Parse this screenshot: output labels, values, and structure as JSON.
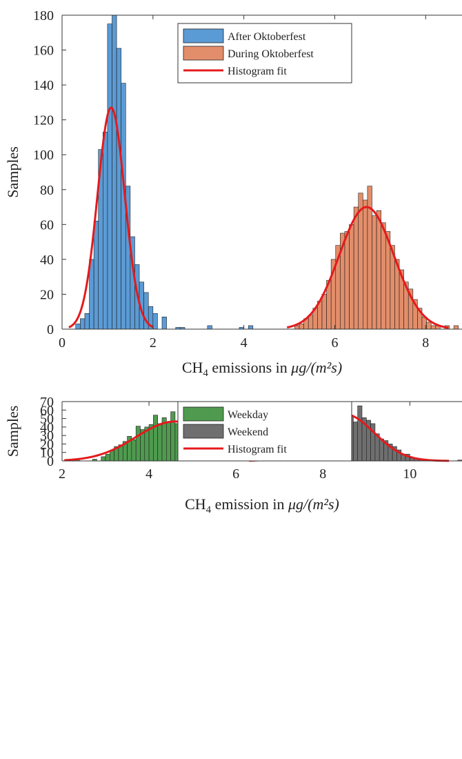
{
  "chart_data": [
    {
      "type": "bar",
      "subtype": "histogram-with-fit",
      "xlabel": {
        "prefix": "CH",
        "sub": "4",
        "rest": " emissions in ",
        "unit": "μg/(m²s)"
      },
      "ylabel": "Samples",
      "xlim": [
        0,
        8.8
      ],
      "ylim": [
        0,
        180
      ],
      "xticks": [
        "0",
        "2",
        "4",
        "6",
        "8"
      ],
      "xtick_values": [
        0,
        2,
        4,
        6,
        8
      ],
      "yticks": [
        "0",
        "20",
        "40",
        "60",
        "80",
        "100",
        "120",
        "140",
        "160",
        "180"
      ],
      "ytick_values": [
        0,
        20,
        40,
        60,
        80,
        100,
        120,
        140,
        160,
        180
      ],
      "grid": false,
      "legend_position": "top-center",
      "series": [
        {
          "name": "After Oktoberfest",
          "kind": "histogram",
          "color": "#5b9bd5",
          "bins_x": [
            0.35,
            0.45,
            0.55,
            0.65,
            0.75,
            0.85,
            0.95,
            1.05,
            1.15,
            1.25,
            1.35,
            1.45,
            1.55,
            1.65,
            1.75,
            1.85,
            1.95,
            2.05,
            2.25,
            2.55,
            2.65,
            3.25,
            3.95,
            4.15
          ],
          "values": [
            3,
            6,
            9,
            40,
            62,
            103,
            113,
            175,
            180,
            161,
            141,
            82,
            53,
            37,
            27,
            21,
            13,
            9,
            7,
            1,
            1,
            2,
            1,
            2
          ]
        },
        {
          "name": "During Oktoberfest",
          "kind": "histogram",
          "color": "#e38e6a",
          "bins_x": [
            5.17,
            5.27,
            5.37,
            5.47,
            5.57,
            5.67,
            5.77,
            5.87,
            5.97,
            6.07,
            6.17,
            6.27,
            6.37,
            6.47,
            6.57,
            6.67,
            6.77,
            6.87,
            6.97,
            7.07,
            7.17,
            7.27,
            7.37,
            7.47,
            7.57,
            7.67,
            7.77,
            7.87,
            7.97,
            8.07,
            8.17,
            8.27,
            8.47,
            8.67
          ],
          "values": [
            2,
            3,
            6,
            8,
            12,
            16,
            20,
            28,
            40,
            48,
            55,
            56,
            60,
            70,
            78,
            74,
            82,
            65,
            68,
            61,
            56,
            48,
            40,
            34,
            27,
            23,
            17,
            12,
            7,
            4,
            2,
            2,
            2,
            2
          ]
        },
        {
          "name": "Histogram fit",
          "kind": "fit",
          "color": "#e41a1c",
          "fits": [
            {
              "mean": 1.08,
              "sd": 0.3,
              "peak": 127,
              "xmin": 0.15,
              "xmax": 2.0
            },
            {
              "mean": 6.7,
              "sd": 0.6,
              "peak": 70,
              "xmin": 4.95,
              "xmax": 8.5
            }
          ]
        }
      ]
    },
    {
      "type": "bar",
      "subtype": "histogram-with-fit",
      "xlabel": {
        "prefix": "CH",
        "sub": "4",
        "rest": " emission in ",
        "unit": "μg/(m²s)"
      },
      "ylabel": "Samples",
      "xlim": [
        2,
        11.2
      ],
      "ylim": [
        0,
        70
      ],
      "xticks": [
        "2",
        "4",
        "6",
        "8",
        "10"
      ],
      "xtick_values": [
        2,
        4,
        6,
        8,
        10
      ],
      "yticks": [
        "0",
        "10",
        "20",
        "30",
        "40",
        "50",
        "60",
        "70"
      ],
      "ytick_values": [
        0,
        10,
        20,
        30,
        40,
        50,
        60,
        70
      ],
      "grid": false,
      "legend_position": "top-center",
      "series": [
        {
          "name": "Weekday",
          "kind": "histogram",
          "color": "#4f9a4f",
          "bins_x": [
            2.35,
            2.75,
            2.95,
            3.05,
            3.15,
            3.25,
            3.35,
            3.45,
            3.55,
            3.65,
            3.75,
            3.85,
            3.95,
            4.05,
            4.15,
            4.25,
            4.35,
            4.45,
            4.55,
            4.65,
            4.75,
            4.85,
            4.95,
            5.05,
            5.15,
            5.25,
            5.35,
            5.45,
            5.55,
            5.65,
            5.75,
            5.85,
            5.95,
            6.05,
            6.15,
            6.25,
            6.35,
            6.45,
            6.55,
            6.65,
            6.75,
            6.85,
            6.95,
            7.05,
            7.15
          ],
          "values": [
            2,
            2,
            5,
            8,
            12,
            17,
            19,
            23,
            29,
            25,
            41,
            37,
            40,
            43,
            54,
            44,
            51,
            46,
            58,
            44,
            54,
            62,
            54,
            45,
            47,
            44,
            36,
            28,
            26,
            24,
            25,
            21,
            19,
            14,
            11,
            9,
            5,
            4,
            4,
            3,
            2,
            2,
            2,
            1,
            1
          ]
        },
        {
          "name": "Weekend",
          "kind": "histogram",
          "color": "#6f6f6f",
          "bins_x": [
            6.75,
            6.85,
            6.95,
            7.05,
            7.15,
            7.25,
            7.35,
            7.45,
            7.55,
            7.65,
            7.75,
            7.85,
            7.95,
            8.05,
            8.15,
            8.25,
            8.35,
            8.45,
            8.55,
            8.65,
            8.75,
            8.85,
            8.95,
            9.05,
            9.15,
            9.25,
            9.35,
            9.45,
            9.55,
            9.65,
            9.75,
            9.85,
            9.95,
            10.05,
            10.15,
            10.25,
            10.35,
            10.45,
            10.55,
            11.15
          ],
          "values": [
            1,
            2,
            3,
            4,
            8,
            13,
            21,
            30,
            41,
            50,
            54,
            55,
            51,
            47,
            54,
            55,
            64,
            60,
            64,
            54,
            46,
            65,
            51,
            48,
            44,
            32,
            26,
            24,
            20,
            17,
            13,
            8,
            8,
            4,
            3,
            2,
            1,
            1,
            1,
            1
          ]
        },
        {
          "name": "Histogram fit",
          "kind": "fit",
          "color": "#e41a1c",
          "fits": [
            {
              "mean": 4.6,
              "sd": 0.9,
              "peak": 46.5,
              "xmin": 2.05,
              "xmax": 7.2
            },
            {
              "mean": 8.5,
              "sd": 0.68,
              "peak": 55,
              "xmin": 6.3,
              "xmax": 10.9
            }
          ]
        }
      ]
    }
  ]
}
